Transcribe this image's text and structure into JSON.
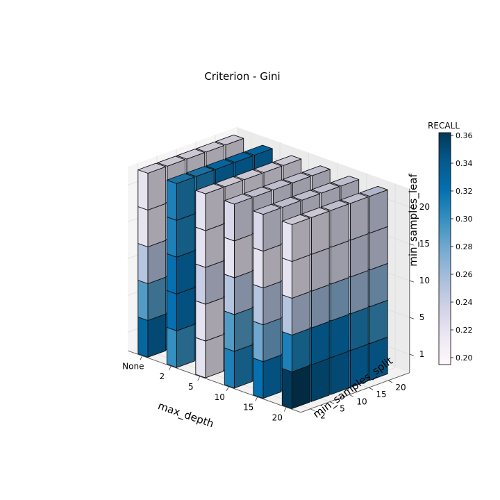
{
  "chart_data": {
    "type": "bar3d",
    "title": "Criterion - Gini",
    "xlabel": "max_depth",
    "ylabel": "min_samples_split",
    "zlabel": "min_samples_leaf",
    "x_ticks": [
      "None",
      "2",
      "5",
      "10",
      "15",
      "20"
    ],
    "y_ticks": [
      "2",
      "5",
      "10",
      "15",
      "20"
    ],
    "z_ticks": [
      "1",
      "5",
      "10",
      "15",
      "20"
    ],
    "colorbar": {
      "label": "RECALL",
      "min": 0.195,
      "max": 0.362,
      "ticks": [
        "0.20",
        "0.22",
        "0.24",
        "0.26",
        "0.28",
        "0.30",
        "0.32",
        "0.34",
        "0.36"
      ],
      "colormap": [
        "#fff7fb",
        "#ece7f2",
        "#d0d1e6",
        "#a6bddb",
        "#74a9cf",
        "#3690c0",
        "#0570b0",
        "#045a8d",
        "#023858"
      ]
    },
    "grid": true,
    "recall": [
      [
        [
          0.33,
          0.29,
          0.25,
          0.22,
          0.22
        ],
        [
          0.33,
          0.29,
          0.25,
          0.22,
          0.22
        ],
        [
          0.33,
          0.29,
          0.25,
          0.22,
          0.22
        ],
        [
          0.33,
          0.29,
          0.25,
          0.22,
          0.22
        ],
        [
          0.33,
          0.29,
          0.25,
          0.22,
          0.22
        ]
      ],
      [
        [
          0.3,
          0.32,
          0.32,
          0.31,
          0.31
        ],
        [
          0.31,
          0.32,
          0.32,
          0.31,
          0.31
        ],
        [
          0.31,
          0.32,
          0.32,
          0.32,
          0.32
        ],
        [
          0.32,
          0.32,
          0.32,
          0.32,
          0.32
        ],
        [
          0.32,
          0.32,
          0.33,
          0.32,
          0.32
        ]
      ],
      [
        [
          0.22,
          0.22,
          0.24,
          0.22,
          0.22
        ],
        [
          0.22,
          0.22,
          0.24,
          0.22,
          0.22
        ],
        [
          0.22,
          0.22,
          0.24,
          0.22,
          0.22
        ],
        [
          0.22,
          0.22,
          0.24,
          0.22,
          0.22
        ],
        [
          0.22,
          0.22,
          0.24,
          0.22,
          0.22
        ]
      ],
      [
        [
          0.31,
          0.29,
          0.25,
          0.22,
          0.23
        ],
        [
          0.31,
          0.29,
          0.25,
          0.22,
          0.23
        ],
        [
          0.31,
          0.29,
          0.25,
          0.22,
          0.23
        ],
        [
          0.31,
          0.29,
          0.25,
          0.22,
          0.23
        ],
        [
          0.31,
          0.29,
          0.25,
          0.22,
          0.23
        ]
      ],
      [
        [
          0.32,
          0.28,
          0.25,
          0.22,
          0.23
        ],
        [
          0.32,
          0.28,
          0.25,
          0.22,
          0.23
        ],
        [
          0.32,
          0.28,
          0.25,
          0.22,
          0.23
        ],
        [
          0.32,
          0.28,
          0.25,
          0.22,
          0.23
        ],
        [
          0.32,
          0.28,
          0.25,
          0.22,
          0.23
        ]
      ],
      [
        [
          0.36,
          0.31,
          0.25,
          0.22,
          0.22
        ],
        [
          0.34,
          0.32,
          0.26,
          0.23,
          0.22
        ],
        [
          0.33,
          0.32,
          0.27,
          0.23,
          0.23
        ],
        [
          0.32,
          0.31,
          0.26,
          0.24,
          0.23
        ],
        [
          0.32,
          0.3,
          0.27,
          0.24,
          0.24
        ]
      ]
    ]
  }
}
